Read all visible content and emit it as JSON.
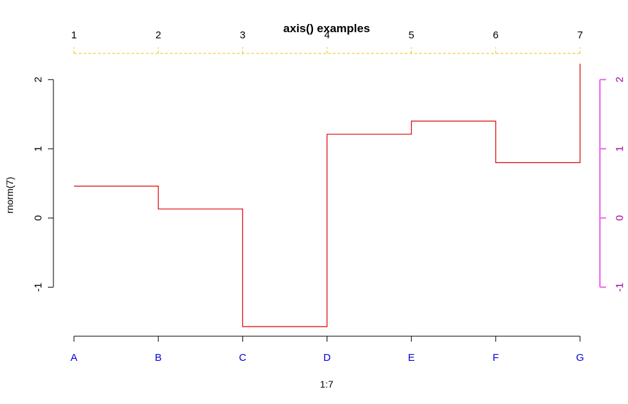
{
  "chart_data": {
    "type": "line",
    "step": true,
    "title": "axis() examples",
    "xlabel": "1:7",
    "ylabel": "rnorm(7)",
    "x": [
      1,
      2,
      3,
      4,
      5,
      6,
      7
    ],
    "series": [
      {
        "values": [
          0.46,
          0.13,
          -1.57,
          1.21,
          1.4,
          0.8,
          2.23
        ]
      }
    ],
    "xlim": [
      1,
      7
    ],
    "ylim": [
      -1.7,
      2.25
    ],
    "grid": false,
    "legend": "none",
    "axes": {
      "bottom": {
        "ticks": [
          1,
          2,
          3,
          4,
          5,
          6,
          7
        ],
        "labels": [
          "A",
          "B",
          "C",
          "D",
          "E",
          "F",
          "G"
        ]
      },
      "top": {
        "ticks": [
          1,
          2,
          3,
          4,
          5,
          6,
          7
        ],
        "labels": [
          "1",
          "2",
          "3",
          "4",
          "5",
          "6",
          "7"
        ],
        "line_style": "dashed"
      },
      "left": {
        "ticks": [
          -1,
          0,
          1,
          2
        ],
        "labels": [
          "-1",
          "0",
          "1",
          "2"
        ]
      },
      "right": {
        "ticks": [
          -1,
          0,
          1,
          2
        ],
        "labels": [
          "-1",
          "0",
          "1",
          "2"
        ]
      }
    },
    "colors": {
      "series": "#dd0000",
      "bottom_axis_labels": "#0000dd",
      "top_axis": "#f0c000",
      "right_axis_line": "#ee66ee",
      "right_axis_labels": "#990099",
      "left_axis": "#000000"
    }
  }
}
